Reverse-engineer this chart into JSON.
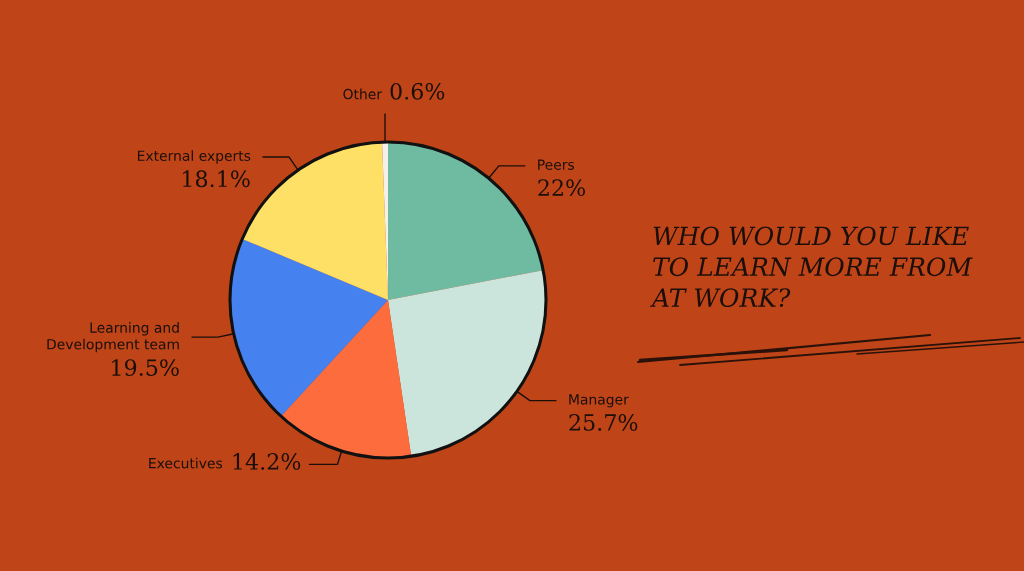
{
  "chart_data": {
    "type": "pie",
    "title": "WHO WOULD YOU LIKE\nTO LEARN MORE FROM\nAT WORK?",
    "categories": [
      "Peers",
      "Manager",
      "Executives",
      "Learning and\nDevelopment team",
      "External experts",
      "Other"
    ],
    "values": [
      22,
      25.7,
      14.2,
      19.5,
      18.1,
      0.6
    ],
    "value_labels": [
      "22%",
      "25.7%",
      "14.2%",
      "19.5%",
      "18.1%",
      "0.6%"
    ],
    "colors": [
      "#6fbba2",
      "#cce5dc",
      "#fc6c3d",
      "#4582ef",
      "#fee066",
      "#f4f1ea"
    ]
  }
}
